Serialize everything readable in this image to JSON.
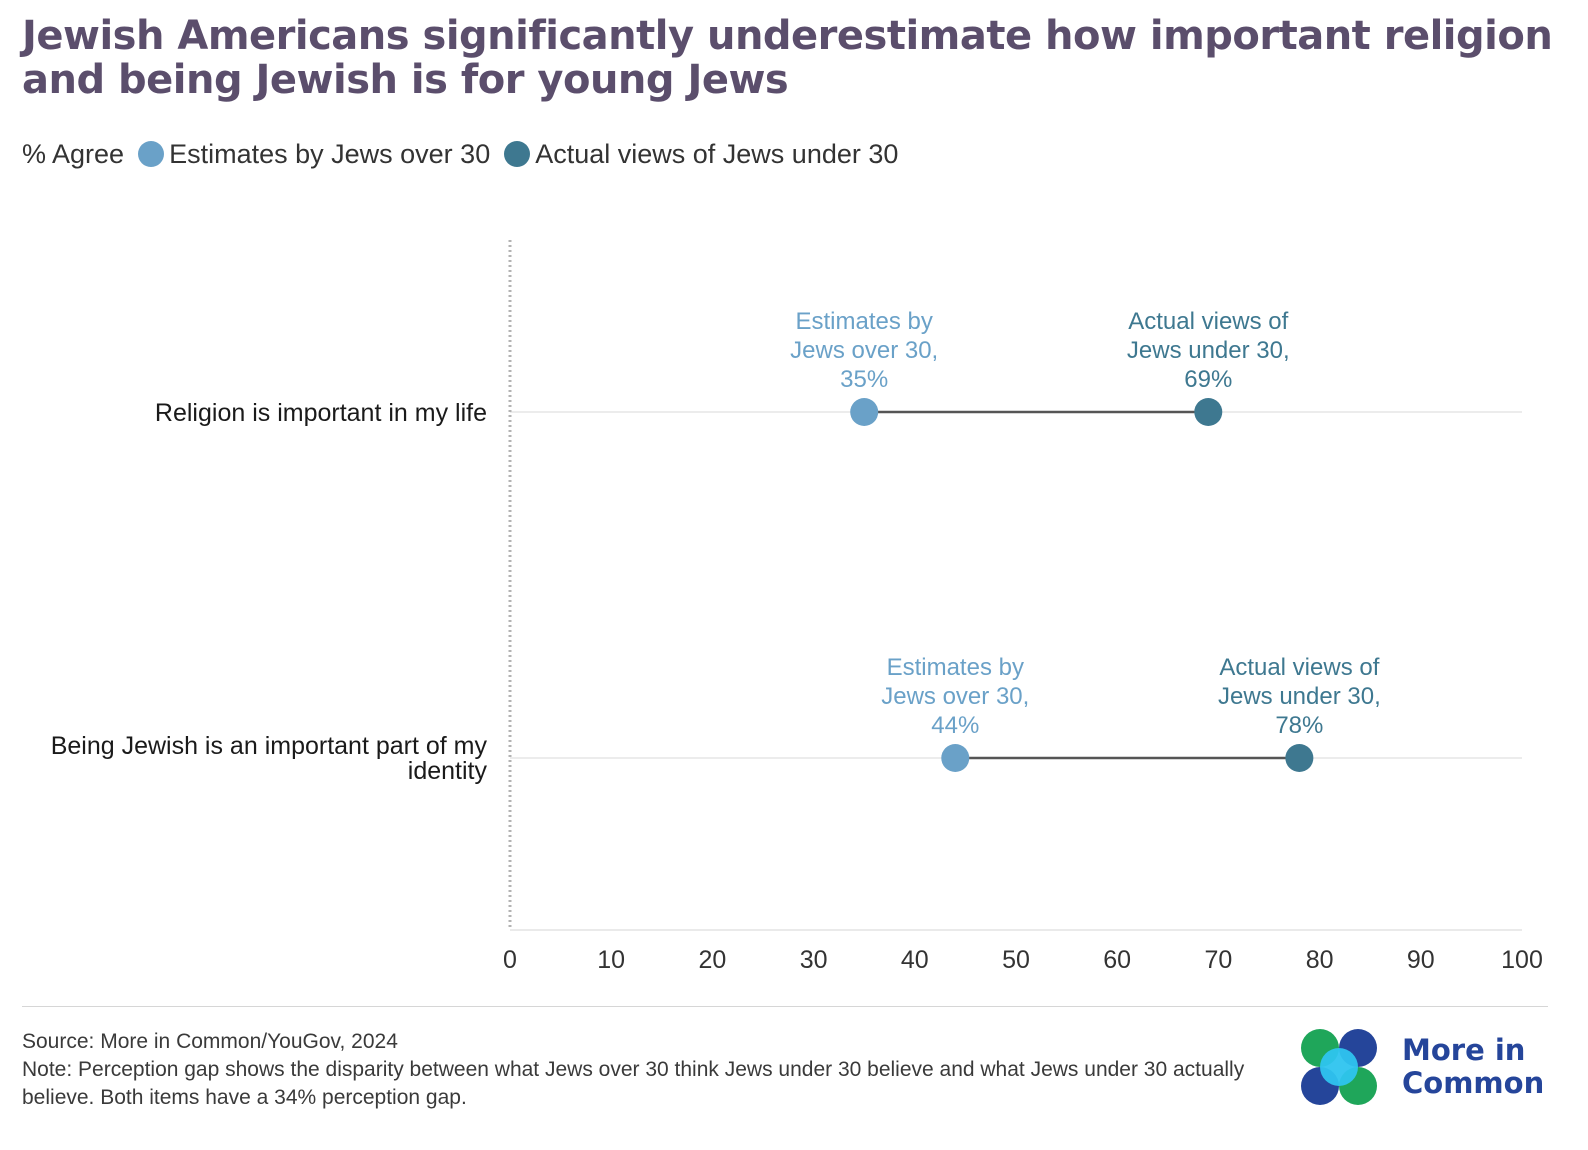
{
  "title": "Jewish Americans significantly underestimate how important religion and being Jewish is for young Jews",
  "legend": {
    "lead": "% Agree",
    "items": [
      {
        "label": "Estimates by Jews over 30",
        "color": "#6aa1c8"
      },
      {
        "label": "Actual views of Jews under 30",
        "color": "#3e7890"
      }
    ]
  },
  "chart_data": {
    "type": "dumbbell",
    "categories": [
      "Religion is important in my life",
      "Being Jewish is an important part of my identity"
    ],
    "series": [
      {
        "name": "Estimates by Jews over 30",
        "values": [
          35,
          44
        ],
        "color": "#6aa1c8",
        "labels": [
          [
            "Estimates by",
            "Jews over 30,",
            "35%"
          ],
          [
            "Estimates by",
            "Jews over 30,",
            "44%"
          ]
        ]
      },
      {
        "name": "Actual views of Jews under 30",
        "values": [
          69,
          78
        ],
        "color": "#3e7890",
        "labels": [
          [
            "Actual views of",
            "Jews under 30,",
            "69%"
          ],
          [
            "Actual views of",
            "Jews under 30,",
            "78%"
          ]
        ]
      }
    ],
    "category_label_lines": [
      [
        "Religion is important in my life"
      ],
      [
        "Being Jewish is an important part of my",
        "identity"
      ]
    ],
    "xlim": [
      0,
      100
    ],
    "xticks": [
      "0",
      "10",
      "20",
      "30",
      "40",
      "50",
      "60",
      "70",
      "80",
      "90",
      "100"
    ],
    "grid": true,
    "connector_color": "#555555"
  },
  "footer": {
    "source": "Source: More in Common/YouGov, 2024",
    "note": "Note: Perception gap shows the disparity between what Jews over 30 think Jews under 30 believe and what Jews under 30 actually believe. Both items have a 34% perception gap."
  },
  "logo": {
    "line1": "More in",
    "line2": "Common",
    "colors": [
      "#1fa65a",
      "#25459a",
      "#2ec4ef"
    ]
  }
}
